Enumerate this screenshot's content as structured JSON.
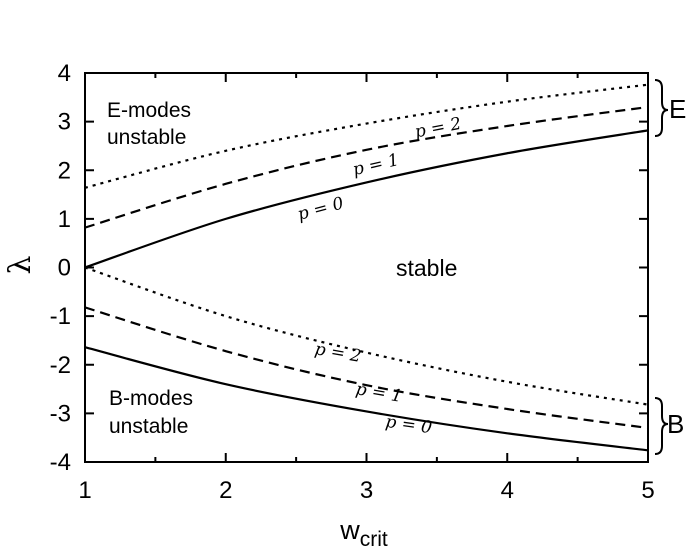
{
  "chart_data": {
    "type": "line",
    "title": "",
    "xlabel": "w",
    "xlabel_sub": "crit",
    "ylabel": "λ",
    "xlim": [
      1,
      5
    ],
    "ylim": [
      -4,
      4
    ],
    "xticks": [
      "1",
      "2",
      "3",
      "4",
      "5"
    ],
    "yticks": [
      "4",
      "3",
      "2",
      "1",
      "0",
      "-1",
      "-2",
      "-3",
      "-4"
    ],
    "x": [
      1,
      2,
      3,
      4,
      5
    ],
    "series": [
      {
        "name": "p = 0",
        "style": "solid",
        "values": [
          0.0,
          1.0,
          1.75,
          2.35,
          2.82
        ]
      },
      {
        "name": "p = 1",
        "style": "dashed",
        "values": [
          0.82,
          1.72,
          2.42,
          2.91,
          3.3
        ]
      },
      {
        "name": "p = 2",
        "style": "dotted",
        "values": [
          1.64,
          2.4,
          2.96,
          3.41,
          3.76
        ]
      },
      {
        "name": "p = 0",
        "style": "solid",
        "values": [
          -1.64,
          -2.4,
          -2.96,
          -3.41,
          -3.76
        ]
      },
      {
        "name": "p = 1",
        "style": "dashed",
        "values": [
          -0.82,
          -1.72,
          -2.42,
          -2.91,
          -3.3
        ]
      },
      {
        "name": "p = 2",
        "style": "dotted",
        "values": [
          0.0,
          -1.0,
          -1.75,
          -2.35,
          -2.82
        ]
      }
    ],
    "region_labels": {
      "e_unstable": [
        "E-modes",
        "unstable"
      ],
      "stable": "stable",
      "b_unstable": [
        "B-modes",
        "unstable"
      ]
    },
    "brackets": {
      "e": "E",
      "b": "B"
    },
    "grid": false
  }
}
